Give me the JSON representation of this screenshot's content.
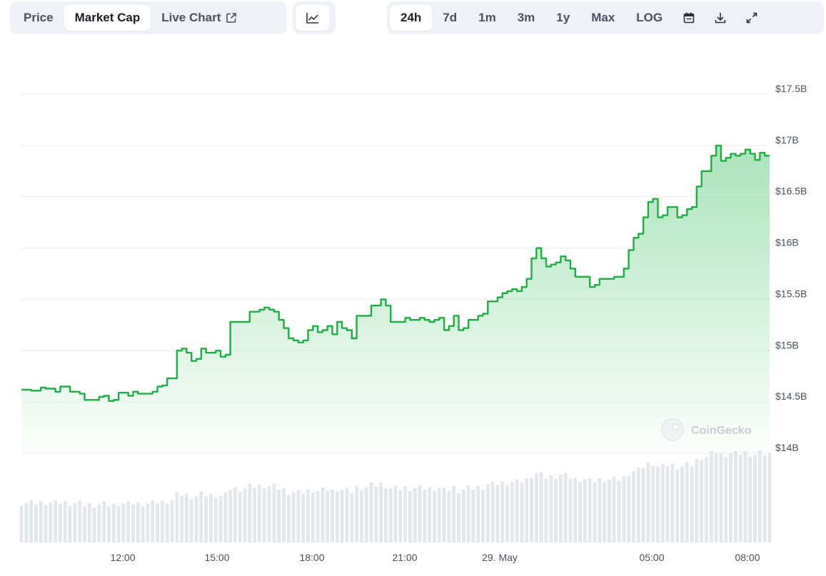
{
  "toolbar": {
    "view_tabs": [
      {
        "label": "Price",
        "active": false
      },
      {
        "label": "Market Cap",
        "active": true
      },
      {
        "label": "Live Chart",
        "active": false
      }
    ],
    "chart_type_icon": "line-chart-icon",
    "ranges": [
      {
        "label": "24h",
        "active": true
      },
      {
        "label": "7d",
        "active": false
      },
      {
        "label": "1m",
        "active": false
      },
      {
        "label": "3m",
        "active": false
      },
      {
        "label": "1y",
        "active": false
      },
      {
        "label": "Max",
        "active": false
      },
      {
        "label": "LOG",
        "active": false
      }
    ],
    "icons": [
      "calendar-icon",
      "download-icon",
      "expand-icon"
    ]
  },
  "watermark": "CoinGecko",
  "colors": {
    "line": "#1fad45",
    "area_top": "#8fdaa4",
    "volume": "#e3e6ea",
    "grid": "#e9ecef",
    "toolbar_bg": "#eef1f6"
  },
  "chart_data": {
    "type": "area",
    "xlabel": "",
    "ylabel": "",
    "x_tick_labels": [
      "12:00",
      "15:00",
      "18:00",
      "21:00",
      "29. May",
      "05:00",
      "08:00"
    ],
    "y_tick_labels": [
      "$14B",
      "$14.5B",
      "$15B",
      "$15.5B",
      "$16B",
      "$16.5B",
      "$17B",
      "$17.5B"
    ],
    "ylim": [
      14.0,
      17.5
    ],
    "y_unit": "$B",
    "grid": true,
    "series": [
      {
        "values": [
          14.62,
          14.62,
          14.61,
          14.61,
          14.64,
          14.63,
          14.63,
          14.6,
          14.65,
          14.65,
          14.6,
          14.6,
          14.58,
          14.52,
          14.52,
          14.52,
          14.55,
          14.56,
          14.51,
          14.52,
          14.59,
          14.59,
          14.56,
          14.6,
          14.58,
          14.58,
          14.58,
          14.6,
          14.65,
          14.66,
          14.73,
          14.73,
          15.0,
          15.02,
          14.98,
          14.9,
          14.92,
          15.02,
          14.98,
          14.98,
          15.0,
          14.94,
          14.96,
          15.28,
          15.28,
          15.28,
          15.28,
          15.38,
          15.38,
          15.4,
          15.42,
          15.4,
          15.38,
          15.3,
          15.22,
          15.12,
          15.1,
          15.08,
          15.1,
          15.2,
          15.24,
          15.18,
          15.2,
          15.24,
          15.16,
          15.28,
          15.22,
          15.2,
          15.12,
          15.34,
          15.34,
          15.34,
          15.44,
          15.44,
          15.5,
          15.44,
          15.28,
          15.28,
          15.28,
          15.32,
          15.3,
          15.3,
          15.32,
          15.3,
          15.28,
          15.3,
          15.32,
          15.2,
          15.24,
          15.34,
          15.2,
          15.22,
          15.3,
          15.3,
          15.34,
          15.36,
          15.48,
          15.48,
          15.52,
          15.56,
          15.58,
          15.6,
          15.58,
          15.62,
          15.7,
          15.9,
          16.0,
          15.9,
          15.82,
          15.84,
          15.86,
          15.92,
          15.88,
          15.8,
          15.72,
          15.72,
          15.72,
          15.62,
          15.64,
          15.7,
          15.7,
          15.7,
          15.72,
          15.72,
          15.8,
          15.98,
          16.1,
          16.14,
          16.3,
          16.45,
          16.48,
          16.3,
          16.32,
          16.4,
          16.4,
          16.3,
          16.32,
          16.38,
          16.4,
          16.6,
          16.75,
          16.75,
          16.9,
          17.0,
          16.85,
          16.88,
          16.92,
          16.9,
          16.92,
          16.96,
          16.92,
          16.86,
          16.93,
          16.9,
          16.9
        ]
      }
    ]
  }
}
